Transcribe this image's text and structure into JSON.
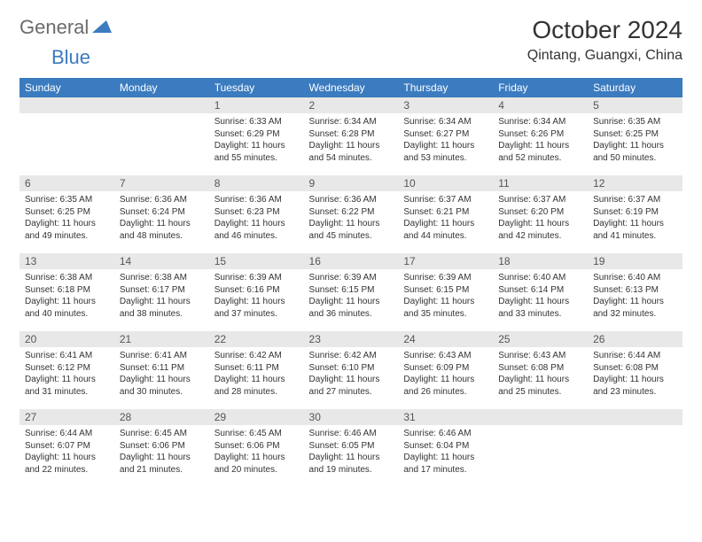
{
  "brand": {
    "part1": "General",
    "part2": "Blue"
  },
  "title": "October 2024",
  "location": "Qintang, Guangxi, China",
  "header_color": "#3b7bbf",
  "daynum_bg": "#e8e8e8",
  "text_color": "#333333",
  "weekdays": [
    "Sunday",
    "Monday",
    "Tuesday",
    "Wednesday",
    "Thursday",
    "Friday",
    "Saturday"
  ],
  "weeks": [
    [
      null,
      null,
      {
        "n": "1",
        "sr": "6:33 AM",
        "ss": "6:29 PM",
        "dl": "11 hours and 55 minutes."
      },
      {
        "n": "2",
        "sr": "6:34 AM",
        "ss": "6:28 PM",
        "dl": "11 hours and 54 minutes."
      },
      {
        "n": "3",
        "sr": "6:34 AM",
        "ss": "6:27 PM",
        "dl": "11 hours and 53 minutes."
      },
      {
        "n": "4",
        "sr": "6:34 AM",
        "ss": "6:26 PM",
        "dl": "11 hours and 52 minutes."
      },
      {
        "n": "5",
        "sr": "6:35 AM",
        "ss": "6:25 PM",
        "dl": "11 hours and 50 minutes."
      }
    ],
    [
      {
        "n": "6",
        "sr": "6:35 AM",
        "ss": "6:25 PM",
        "dl": "11 hours and 49 minutes."
      },
      {
        "n": "7",
        "sr": "6:36 AM",
        "ss": "6:24 PM",
        "dl": "11 hours and 48 minutes."
      },
      {
        "n": "8",
        "sr": "6:36 AM",
        "ss": "6:23 PM",
        "dl": "11 hours and 46 minutes."
      },
      {
        "n": "9",
        "sr": "6:36 AM",
        "ss": "6:22 PM",
        "dl": "11 hours and 45 minutes."
      },
      {
        "n": "10",
        "sr": "6:37 AM",
        "ss": "6:21 PM",
        "dl": "11 hours and 44 minutes."
      },
      {
        "n": "11",
        "sr": "6:37 AM",
        "ss": "6:20 PM",
        "dl": "11 hours and 42 minutes."
      },
      {
        "n": "12",
        "sr": "6:37 AM",
        "ss": "6:19 PM",
        "dl": "11 hours and 41 minutes."
      }
    ],
    [
      {
        "n": "13",
        "sr": "6:38 AM",
        "ss": "6:18 PM",
        "dl": "11 hours and 40 minutes."
      },
      {
        "n": "14",
        "sr": "6:38 AM",
        "ss": "6:17 PM",
        "dl": "11 hours and 38 minutes."
      },
      {
        "n": "15",
        "sr": "6:39 AM",
        "ss": "6:16 PM",
        "dl": "11 hours and 37 minutes."
      },
      {
        "n": "16",
        "sr": "6:39 AM",
        "ss": "6:15 PM",
        "dl": "11 hours and 36 minutes."
      },
      {
        "n": "17",
        "sr": "6:39 AM",
        "ss": "6:15 PM",
        "dl": "11 hours and 35 minutes."
      },
      {
        "n": "18",
        "sr": "6:40 AM",
        "ss": "6:14 PM",
        "dl": "11 hours and 33 minutes."
      },
      {
        "n": "19",
        "sr": "6:40 AM",
        "ss": "6:13 PM",
        "dl": "11 hours and 32 minutes."
      }
    ],
    [
      {
        "n": "20",
        "sr": "6:41 AM",
        "ss": "6:12 PM",
        "dl": "11 hours and 31 minutes."
      },
      {
        "n": "21",
        "sr": "6:41 AM",
        "ss": "6:11 PM",
        "dl": "11 hours and 30 minutes."
      },
      {
        "n": "22",
        "sr": "6:42 AM",
        "ss": "6:11 PM",
        "dl": "11 hours and 28 minutes."
      },
      {
        "n": "23",
        "sr": "6:42 AM",
        "ss": "6:10 PM",
        "dl": "11 hours and 27 minutes."
      },
      {
        "n": "24",
        "sr": "6:43 AM",
        "ss": "6:09 PM",
        "dl": "11 hours and 26 minutes."
      },
      {
        "n": "25",
        "sr": "6:43 AM",
        "ss": "6:08 PM",
        "dl": "11 hours and 25 minutes."
      },
      {
        "n": "26",
        "sr": "6:44 AM",
        "ss": "6:08 PM",
        "dl": "11 hours and 23 minutes."
      }
    ],
    [
      {
        "n": "27",
        "sr": "6:44 AM",
        "ss": "6:07 PM",
        "dl": "11 hours and 22 minutes."
      },
      {
        "n": "28",
        "sr": "6:45 AM",
        "ss": "6:06 PM",
        "dl": "11 hours and 21 minutes."
      },
      {
        "n": "29",
        "sr": "6:45 AM",
        "ss": "6:06 PM",
        "dl": "11 hours and 20 minutes."
      },
      {
        "n": "30",
        "sr": "6:46 AM",
        "ss": "6:05 PM",
        "dl": "11 hours and 19 minutes."
      },
      {
        "n": "31",
        "sr": "6:46 AM",
        "ss": "6:04 PM",
        "dl": "11 hours and 17 minutes."
      },
      null,
      null
    ]
  ]
}
